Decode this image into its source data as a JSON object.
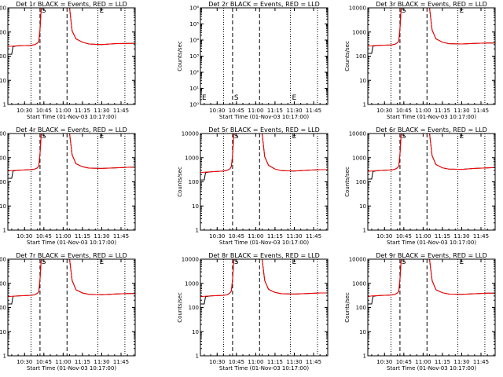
{
  "page": {
    "background": "#ffffff"
  },
  "colors": {
    "events": "#000000",
    "lld": "#ff0000",
    "axes": "#000000"
  },
  "chart_data": [
    {
      "type": "line",
      "title": "Det 1r BLACK = Events, RED = LLD",
      "xlabel": "Start Time (01-Nov-03 10:17:00)",
      "ylabel": "Counts/sec",
      "y_scale": "log",
      "ylim": [
        1,
        10000
      ],
      "ytick_labels": [
        "1",
        "10",
        "100",
        "1000",
        "10000"
      ],
      "xlim": [
        "10:17",
        "11:56"
      ],
      "xtick_labels": [
        "10:30",
        "10:45",
        "11:00",
        "11:15",
        "11:30",
        "11:45"
      ],
      "markers": [
        "S",
        "E"
      ],
      "series": [
        {
          "color": "#000000",
          "x": [
            "10:17",
            "10:20",
            "10:21",
            "10:25",
            "10:30",
            "10:35",
            "10:38",
            "10:40",
            "10:41",
            "10:42",
            "10:43",
            "11:05",
            "11:07",
            "11:10",
            "11:15",
            "11:20",
            "11:30",
            "11:40",
            "11:50",
            "11:56"
          ],
          "values": [
            120,
            120,
            250,
            270,
            275,
            280,
            300,
            350,
            400,
            1200,
            12000,
            12000,
            1100,
            520,
            380,
            320,
            300,
            330,
            340,
            340
          ]
        },
        {
          "color": "#ff0000",
          "x": [
            "10:17",
            "10:20",
            "10:25",
            "10:30",
            "10:35",
            "10:38",
            "10:40",
            "10:41",
            "10:42",
            "10:43",
            "11:05",
            "11:07",
            "11:10",
            "11:15",
            "11:20",
            "11:30",
            "11:40",
            "11:50",
            "11:56"
          ],
          "values": [
            250,
            260,
            270,
            275,
            280,
            300,
            350,
            400,
            1200,
            12000,
            12000,
            1100,
            520,
            380,
            320,
            300,
            330,
            340,
            340
          ]
        }
      ]
    },
    {
      "type": "line",
      "title": "Det 2r BLACK = Events, RED = LLD",
      "xlabel": "Start Time (01-Nov-03 10:17:00)",
      "ylabel": "Counts/sec",
      "y_scale": "log",
      "ylim": [
        1,
        1000000
      ],
      "ytick_labels": [
        "10⁰",
        "10¹",
        "10²",
        "10³",
        "10⁴",
        "10⁵",
        "10⁶"
      ],
      "xlim": [
        "10:17",
        "11:56"
      ],
      "xtick_labels": [
        "10:30",
        "10:45",
        "11:00",
        "11:15",
        "11:30",
        "11:45"
      ],
      "markers": [
        "E",
        "S",
        "E"
      ],
      "series": []
    },
    {
      "type": "line",
      "title": "Det 3r BLACK = Events, RED = LLD",
      "xlabel": "Start Time (01-Nov-03 10:17:00)",
      "ylabel": "Counts/sec",
      "y_scale": "log",
      "ylim": [
        1,
        10000
      ],
      "ytick_labels": [
        "1",
        "10",
        "100",
        "1000",
        "10000"
      ],
      "xlim": [
        "10:17",
        "11:56"
      ],
      "xtick_labels": [
        "10:30",
        "10:45",
        "11:00",
        "11:15",
        "11:30",
        "11:45"
      ],
      "markers": [
        "S",
        "E"
      ],
      "series": [
        {
          "color": "#000000",
          "x": [
            "10:17",
            "10:20",
            "10:21",
            "10:25",
            "10:30",
            "10:35",
            "10:38",
            "10:40",
            "10:41",
            "10:42",
            "10:43",
            "11:05",
            "11:07",
            "11:10",
            "11:15",
            "11:20",
            "11:30",
            "11:40",
            "11:50",
            "11:56"
          ],
          "values": [
            130,
            130,
            260,
            280,
            285,
            290,
            310,
            360,
            420,
            1300,
            12000,
            12000,
            1200,
            520,
            380,
            330,
            320,
            340,
            350,
            350
          ]
        },
        {
          "color": "#ff0000",
          "x": [
            "10:17",
            "10:20",
            "10:25",
            "10:30",
            "10:35",
            "10:38",
            "10:40",
            "10:41",
            "10:42",
            "10:43",
            "11:05",
            "11:07",
            "11:10",
            "11:15",
            "11:20",
            "11:30",
            "11:40",
            "11:50",
            "11:56"
          ],
          "values": [
            260,
            270,
            280,
            285,
            290,
            310,
            360,
            420,
            1300,
            12000,
            12000,
            1200,
            520,
            380,
            330,
            320,
            340,
            350,
            350
          ]
        }
      ]
    },
    {
      "type": "line",
      "title": "Det 4r BLACK = Events, RED = LLD",
      "xlabel": "Start Time (01-Nov-03 10:17:00)",
      "ylabel": "Counts/sec",
      "y_scale": "log",
      "ylim": [
        1,
        10000
      ],
      "ytick_labels": [
        "1",
        "10",
        "100",
        "1000",
        "10000"
      ],
      "xlim": [
        "10:17",
        "11:56"
      ],
      "xtick_labels": [
        "10:30",
        "10:45",
        "11:00",
        "11:15",
        "11:30",
        "11:45"
      ],
      "markers": [
        "S",
        "E"
      ],
      "series": [
        {
          "color": "#000000",
          "x": [
            "10:17",
            "10:20",
            "10:21",
            "10:25",
            "10:30",
            "10:35",
            "10:38",
            "10:40",
            "10:41",
            "10:42",
            "10:43",
            "11:05",
            "11:07",
            "11:10",
            "11:15",
            "11:20",
            "11:30",
            "11:40",
            "11:50",
            "11:56"
          ],
          "values": [
            140,
            140,
            280,
            300,
            310,
            320,
            340,
            380,
            450,
            1400,
            12000,
            12000,
            1300,
            560,
            420,
            370,
            360,
            380,
            400,
            410
          ]
        },
        {
          "color": "#ff0000",
          "x": [
            "10:17",
            "10:20",
            "10:25",
            "10:30",
            "10:35",
            "10:38",
            "10:40",
            "10:41",
            "10:42",
            "10:43",
            "11:05",
            "11:07",
            "11:10",
            "11:15",
            "11:20",
            "11:30",
            "11:40",
            "11:50",
            "11:56"
          ],
          "values": [
            280,
            290,
            300,
            310,
            320,
            340,
            380,
            450,
            1400,
            12000,
            12000,
            1300,
            560,
            420,
            370,
            360,
            380,
            400,
            410
          ]
        }
      ]
    },
    {
      "type": "line",
      "title": "Det 5r BLACK = Events, RED = LLD",
      "xlabel": "Start Time (01-Nov-03 10:17:00)",
      "ylabel": "Counts/sec",
      "y_scale": "log",
      "ylim": [
        1,
        10000
      ],
      "ytick_labels": [
        "1",
        "10",
        "100",
        "1000",
        "10000"
      ],
      "xlim": [
        "10:17",
        "11:56"
      ],
      "xtick_labels": [
        "10:30",
        "10:45",
        "11:00",
        "11:15",
        "11:30",
        "11:45"
      ],
      "markers": [
        "S",
        "E"
      ],
      "series": [
        {
          "color": "#000000",
          "x": [
            "10:17",
            "10:20",
            "10:21",
            "10:25",
            "10:30",
            "10:35",
            "10:38",
            "10:40",
            "10:41",
            "10:42",
            "10:43",
            "11:05",
            "11:07",
            "11:10",
            "11:15",
            "11:20",
            "11:30",
            "11:40",
            "11:50",
            "11:56"
          ],
          "values": [
            120,
            120,
            240,
            260,
            270,
            280,
            300,
            350,
            420,
            1200,
            12000,
            12000,
            1100,
            480,
            340,
            290,
            280,
            300,
            320,
            320
          ]
        },
        {
          "color": "#ff0000",
          "x": [
            "10:17",
            "10:20",
            "10:25",
            "10:30",
            "10:35",
            "10:38",
            "10:40",
            "10:41",
            "10:42",
            "10:43",
            "11:05",
            "11:07",
            "11:10",
            "11:15",
            "11:20",
            "11:30",
            "11:40",
            "11:50",
            "11:56"
          ],
          "values": [
            240,
            250,
            260,
            270,
            280,
            300,
            350,
            420,
            1200,
            12000,
            12000,
            1100,
            480,
            340,
            290,
            280,
            300,
            320,
            320
          ]
        }
      ]
    },
    {
      "type": "line",
      "title": "Det 6r BLACK = Events, RED = LLD",
      "xlabel": "Start Time (01-Nov-03 10:17:00)",
      "ylabel": "Counts/sec",
      "y_scale": "log",
      "ylim": [
        1,
        10000
      ],
      "ytick_labels": [
        "1",
        "10",
        "100",
        "1000",
        "10000"
      ],
      "xlim": [
        "10:17",
        "11:56"
      ],
      "xtick_labels": [
        "10:30",
        "10:45",
        "11:00",
        "11:15",
        "11:30",
        "11:45"
      ],
      "markers": [
        "S",
        "E"
      ],
      "series": [
        {
          "color": "#000000",
          "x": [
            "10:17",
            "10:20",
            "10:21",
            "10:25",
            "10:30",
            "10:35",
            "10:38",
            "10:40",
            "10:41",
            "10:42",
            "10:43",
            "11:05",
            "11:07",
            "11:10",
            "11:15",
            "11:20",
            "11:30",
            "11:40",
            "11:50",
            "11:56"
          ],
          "values": [
            130,
            130,
            270,
            290,
            300,
            310,
            330,
            380,
            440,
            1300,
            12000,
            12000,
            1200,
            520,
            380,
            340,
            330,
            360,
            380,
            390
          ]
        },
        {
          "color": "#ff0000",
          "x": [
            "10:17",
            "10:20",
            "10:25",
            "10:30",
            "10:35",
            "10:38",
            "10:40",
            "10:41",
            "10:42",
            "10:43",
            "11:05",
            "11:07",
            "11:10",
            "11:15",
            "11:20",
            "11:30",
            "11:40",
            "11:50",
            "11:56"
          ],
          "values": [
            270,
            280,
            290,
            300,
            310,
            330,
            380,
            440,
            1300,
            12000,
            12000,
            1200,
            520,
            380,
            340,
            330,
            360,
            380,
            390
          ]
        }
      ]
    },
    {
      "type": "line",
      "title": "Det 7r BLACK = Events, RED = LLD",
      "xlabel": "Start Time (01-Nov-03 10:17:00)",
      "ylabel": "Counts/sec",
      "y_scale": "log",
      "ylim": [
        1,
        10000
      ],
      "ytick_labels": [
        "1",
        "10",
        "100",
        "1000",
        "10000"
      ],
      "xlim": [
        "10:17",
        "11:56"
      ],
      "xtick_labels": [
        "10:30",
        "10:45",
        "11:00",
        "11:15",
        "11:30",
        "11:45"
      ],
      "markers": [
        "S",
        "E"
      ],
      "series": [
        {
          "color": "#000000",
          "x": [
            "10:17",
            "10:20",
            "10:21",
            "10:25",
            "10:30",
            "10:35",
            "10:38",
            "10:40",
            "10:41",
            "10:42",
            "10:43",
            "11:05",
            "11:07",
            "11:10",
            "11:15",
            "11:20",
            "11:30",
            "11:40",
            "11:50",
            "11:56"
          ],
          "values": [
            140,
            140,
            290,
            300,
            310,
            320,
            340,
            390,
            450,
            1400,
            12000,
            12000,
            1300,
            540,
            400,
            350,
            340,
            360,
            380,
            380
          ]
        },
        {
          "color": "#ff0000",
          "x": [
            "10:17",
            "10:20",
            "10:25",
            "10:30",
            "10:35",
            "10:38",
            "10:40",
            "10:41",
            "10:42",
            "10:43",
            "11:05",
            "11:07",
            "11:10",
            "11:15",
            "11:20",
            "11:30",
            "11:40",
            "11:50",
            "11:56"
          ],
          "values": [
            280,
            290,
            300,
            310,
            320,
            340,
            390,
            450,
            1400,
            12000,
            12000,
            1300,
            540,
            400,
            350,
            340,
            360,
            380,
            380
          ]
        }
      ]
    },
    {
      "type": "line",
      "title": "Det 8r BLACK = Events, RED = LLD",
      "xlabel": "Start Time (01-Nov-03 10:17:00)",
      "ylabel": "Counts/sec",
      "y_scale": "log",
      "ylim": [
        1,
        10000
      ],
      "ytick_labels": [
        "1",
        "10",
        "100",
        "1000",
        "10000"
      ],
      "xlim": [
        "10:17",
        "11:56"
      ],
      "xtick_labels": [
        "10:30",
        "10:45",
        "11:00",
        "11:15",
        "11:30",
        "11:45"
      ],
      "markers": [
        "S",
        "E"
      ],
      "series": [
        {
          "color": "#000000",
          "x": [
            "10:17",
            "10:20",
            "10:21",
            "10:25",
            "10:30",
            "10:35",
            "10:38",
            "10:40",
            "10:41",
            "10:42",
            "10:43",
            "11:05",
            "11:07",
            "11:10",
            "11:15",
            "11:20",
            "11:30",
            "11:40",
            "11:50",
            "11:56"
          ],
          "values": [
            140,
            140,
            280,
            300,
            310,
            320,
            340,
            400,
            480,
            1400,
            12000,
            12000,
            1300,
            560,
            420,
            370,
            360,
            380,
            400,
            400
          ]
        },
        {
          "color": "#ff0000",
          "x": [
            "10:17",
            "10:20",
            "10:25",
            "10:30",
            "10:35",
            "10:38",
            "10:40",
            "10:41",
            "10:42",
            "10:43",
            "11:05",
            "11:07",
            "11:10",
            "11:15",
            "11:20",
            "11:30",
            "11:40",
            "11:50",
            "11:56"
          ],
          "values": [
            280,
            290,
            300,
            310,
            320,
            340,
            400,
            480,
            1400,
            12000,
            12000,
            1300,
            560,
            420,
            370,
            360,
            380,
            400,
            400
          ]
        }
      ]
    },
    {
      "type": "line",
      "title": "Det 9r BLACK = Events, RED = LLD",
      "xlabel": "Start Time (01-Nov-03 10:17:00)",
      "ylabel": "Counts/sec",
      "y_scale": "log",
      "ylim": [
        1,
        10000
      ],
      "ytick_labels": [
        "1",
        "10",
        "100",
        "1000",
        "10000"
      ],
      "xlim": [
        "10:17",
        "11:56"
      ],
      "xtick_labels": [
        "10:30",
        "10:45",
        "11:00",
        "11:15",
        "11:30",
        "11:45"
      ],
      "markers": [
        "S",
        "E"
      ],
      "series": [
        {
          "color": "#000000",
          "x": [
            "10:17",
            "10:20",
            "10:21",
            "10:25",
            "10:30",
            "10:35",
            "10:38",
            "10:40",
            "10:41",
            "10:42",
            "10:43",
            "11:05",
            "11:07",
            "11:10",
            "11:15",
            "11:20",
            "11:30",
            "11:40",
            "11:50",
            "11:56"
          ],
          "values": [
            140,
            140,
            290,
            310,
            320,
            330,
            350,
            400,
            460,
            1400,
            12000,
            12000,
            1300,
            540,
            410,
            360,
            350,
            370,
            390,
            390
          ]
        },
        {
          "color": "#ff0000",
          "x": [
            "10:17",
            "10:20",
            "10:25",
            "10:30",
            "10:35",
            "10:38",
            "10:40",
            "10:41",
            "10:42",
            "10:43",
            "11:05",
            "11:07",
            "11:10",
            "11:15",
            "11:20",
            "11:30",
            "11:40",
            "11:50",
            "11:56"
          ],
          "values": [
            280,
            300,
            310,
            320,
            330,
            350,
            400,
            460,
            1400,
            12000,
            12000,
            1300,
            540,
            410,
            360,
            350,
            370,
            390,
            390
          ]
        }
      ]
    }
  ]
}
